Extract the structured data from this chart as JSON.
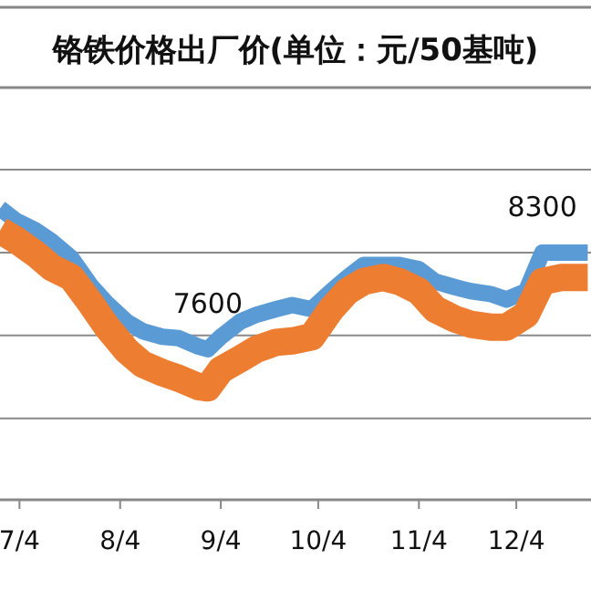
{
  "chart_data": {
    "type": "line",
    "title": "铬铁价格出厂价(单位：元/50基吨)",
    "grid": "y",
    "line_style": "solid",
    "tick_labels": "x",
    "xlim": [
      "--06-28",
      "--12-27"
    ],
    "xticks": [
      {
        "value": "--07-04",
        "label": "7/4"
      },
      {
        "value": "--08-04",
        "label": "8/4"
      },
      {
        "value": "--09-04",
        "label": "9/4"
      },
      {
        "value": "--10-04",
        "label": "10/4"
      },
      {
        "value": "--11-04",
        "label": "11/4"
      },
      {
        "value": "--12-04",
        "label": "12/4"
      }
    ],
    "ylim": [
      6510,
      8900
    ],
    "yticks": [
      {
        "value": 7100,
        "label": null
      },
      {
        "value": 7700,
        "label": null
      },
      {
        "value": 8300,
        "label": null
      },
      {
        "value": 8900,
        "label": null
      }
    ],
    "x": [
      "--06-28",
      "--07-03",
      "--07-09",
      "--07-14",
      "--07-20",
      "--07-26",
      "--07-31",
      "--08-06",
      "--08-11",
      "--08-17",
      "--08-22",
      "--08-28",
      "--08-31",
      "--09-04",
      "--09-10",
      "--09-15",
      "--09-21",
      "--09-26",
      "--10-02",
      "--10-08",
      "--10-13",
      "--10-18",
      "--10-24",
      "--10-29",
      "--11-04",
      "--11-09",
      "--11-15",
      "--11-20",
      "--11-26",
      "--12-01",
      "--12-07",
      "--12-12",
      "--12-18",
      "--12-26"
    ],
    "series": [
      {
        "color": "#5b9bd5",
        "values": [
          8620,
          8530,
          8460,
          8380,
          8260,
          8060,
          7930,
          7800,
          7730,
          7690,
          7680,
          7620,
          7600,
          7690,
          7800,
          7850,
          7890,
          7920,
          7890,
          8020,
          8120,
          8210,
          8210,
          8210,
          8180,
          8090,
          8050,
          8020,
          8000,
          7960,
          8020,
          8300,
          8300,
          8300
        ],
        "value_labels": [
          null,
          null,
          null,
          null,
          null,
          null,
          null,
          null,
          null,
          null,
          null,
          null,
          "7600",
          null,
          null,
          null,
          null,
          null,
          null,
          null,
          null,
          null,
          null,
          null,
          null,
          null,
          null,
          null,
          null,
          null,
          null,
          "8300",
          null,
          null
        ]
      },
      {
        "color": "#ed7d31",
        "values": [
          8460,
          8390,
          8290,
          8190,
          8120,
          7930,
          7760,
          7590,
          7490,
          7430,
          7390,
          7330,
          7320,
          7450,
          7530,
          7600,
          7650,
          7660,
          7690,
          7890,
          8020,
          8090,
          8120,
          8090,
          8020,
          7890,
          7820,
          7780,
          7760,
          7760,
          7850,
          8090,
          8120,
          8120
        ]
      }
    ]
  }
}
